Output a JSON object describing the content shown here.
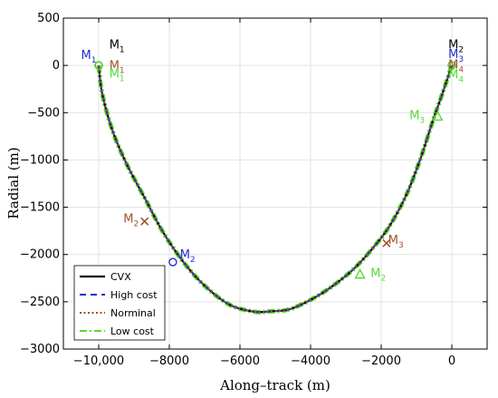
{
  "chart_data": {
    "type": "line",
    "xlabel": "Along–track (m)",
    "ylabel": "Radial (m)",
    "xlim": [
      -11000,
      1000
    ],
    "ylim": [
      -3000,
      500
    ],
    "xticks": [
      -10000,
      -8000,
      -6000,
      -4000,
      -2000,
      0
    ],
    "xtick_labels": [
      "−10,000",
      "−8000",
      "−6000",
      "−4000",
      "−2000",
      "0"
    ],
    "yticks": [
      500,
      0,
      -500,
      -1000,
      -1500,
      -2000,
      -2500,
      -3000
    ],
    "ytick_labels": [
      "500",
      "0",
      "−500",
      "−1000",
      "−1500",
      "−2000",
      "−2500",
      "−3000"
    ],
    "grid": true,
    "legend_position": "bottom-left",
    "series": [
      {
        "name": "CVX",
        "color": "#000000",
        "style": "solid",
        "x": [
          -10000,
          -9900,
          -9600,
          -9200,
          -8700,
          -8200,
          -7600,
          -7000,
          -6300,
          -5600,
          -5100,
          -4600,
          -4000,
          -3400,
          -2800,
          -2300,
          -1800,
          -1300,
          -900,
          -550,
          -250,
          0
        ],
        "y": [
          0,
          -300,
          -700,
          -1050,
          -1400,
          -1750,
          -2080,
          -2330,
          -2530,
          -2605,
          -2600,
          -2580,
          -2480,
          -2340,
          -2160,
          -1960,
          -1720,
          -1380,
          -1000,
          -600,
          -280,
          0
        ]
      },
      {
        "name": "High cost",
        "color": "#1f2fd0",
        "style": "dashed",
        "x": [
          -10000,
          -9900,
          -9600,
          -9200,
          -8700,
          -8200,
          -7600,
          -7000,
          -6300,
          -5600,
          -5100,
          -4600,
          -4000,
          -3400,
          -2800,
          -2300,
          -1800,
          -1300,
          -900,
          -550,
          -250,
          0
        ],
        "y": [
          0,
          -300,
          -700,
          -1050,
          -1400,
          -1750,
          -2080,
          -2330,
          -2530,
          -2605,
          -2600,
          -2580,
          -2480,
          -2340,
          -2160,
          -1960,
          -1720,
          -1380,
          -1000,
          -600,
          -280,
          0
        ]
      },
      {
        "name": "Norminal",
        "color": "#a0522d",
        "style": "dotted",
        "x": [
          -10000,
          -9900,
          -9600,
          -9200,
          -8700,
          -8200,
          -7600,
          -7000,
          -6300,
          -5600,
          -5100,
          -4600,
          -4000,
          -3400,
          -2800,
          -2300,
          -1800,
          -1300,
          -900,
          -550,
          -250,
          0
        ],
        "y": [
          0,
          -300,
          -700,
          -1050,
          -1400,
          -1750,
          -2080,
          -2330,
          -2530,
          -2605,
          -2600,
          -2580,
          -2480,
          -2340,
          -2160,
          -1960,
          -1720,
          -1380,
          -1000,
          -600,
          -280,
          0
        ]
      },
      {
        "name": "Low cost",
        "color": "#55dd33",
        "style": "dashdot",
        "x": [
          -10000,
          -9900,
          -9600,
          -9200,
          -8700,
          -8200,
          -7600,
          -7000,
          -6300,
          -5600,
          -5100,
          -4600,
          -4000,
          -3400,
          -2800,
          -2300,
          -1800,
          -1300,
          -900,
          -550,
          -250,
          0
        ],
        "y": [
          0,
          -300,
          -700,
          -1050,
          -1400,
          -1750,
          -2080,
          -2330,
          -2530,
          -2605,
          -2600,
          -2580,
          -2480,
          -2340,
          -2160,
          -1960,
          -1720,
          -1380,
          -1000,
          -600,
          -280,
          0
        ]
      }
    ],
    "markers": [
      {
        "x": -10000,
        "y": 0,
        "shape": "circle",
        "color": "#000000"
      },
      {
        "x": -10000,
        "y": 0,
        "shape": "circle",
        "color": "#55dd33"
      },
      {
        "x": 0,
        "y": 0,
        "shape": "circle",
        "color": "#000000"
      },
      {
        "x": 0,
        "y": 0,
        "shape": "circle",
        "color": "#55dd33"
      },
      {
        "x": -7900,
        "y": -2080,
        "shape": "circle",
        "color": "#1f2fd0"
      },
      {
        "x": -8700,
        "y": -1650,
        "shape": "x",
        "color": "#a0522d"
      },
      {
        "x": -1850,
        "y": -1880,
        "shape": "x",
        "color": "#a0522d"
      },
      {
        "x": -2600,
        "y": -2210,
        "shape": "triangle",
        "color": "#55dd33"
      },
      {
        "x": -400,
        "y": -540,
        "shape": "triangle",
        "color": "#55dd33"
      }
    ],
    "annotations": [
      {
        "text": "M",
        "sub": "1",
        "x": -10500,
        "y": 70,
        "color": "#1f2fd0"
      },
      {
        "text": "M",
        "sub": "1",
        "x": -9700,
        "y": 180,
        "color": "#000000"
      },
      {
        "text": "M",
        "sub": "1",
        "x": -9700,
        "y": -40,
        "color": "#a0522d"
      },
      {
        "text": "M",
        "sub": "1",
        "x": -9700,
        "y": -130,
        "color": "#55dd33"
      },
      {
        "text": "M",
        "sub": "2",
        "x": -100,
        "y": 180,
        "color": "#000000"
      },
      {
        "text": "M",
        "sub": "3",
        "x": -100,
        "y": 80,
        "color": "#1f2fd0"
      },
      {
        "text": "M",
        "sub": "4",
        "x": -100,
        "y": -30,
        "color": "#a0522d"
      },
      {
        "text": "M",
        "sub": "4",
        "x": -100,
        "y": -140,
        "color": "#55dd33"
      },
      {
        "text": "M",
        "sub": "3",
        "x": -1200,
        "y": -570,
        "color": "#55dd33"
      },
      {
        "text": "M",
        "sub": "2",
        "x": -9300,
        "y": -1660,
        "color": "#a0522d"
      },
      {
        "text": "M",
        "sub": "2",
        "x": -7700,
        "y": -2040,
        "color": "#1f2fd0"
      },
      {
        "text": "M",
        "sub": "3",
        "x": -1800,
        "y": -1890,
        "color": "#a0522d"
      },
      {
        "text": "M",
        "sub": "2",
        "x": -2300,
        "y": -2240,
        "color": "#55dd33"
      }
    ]
  }
}
